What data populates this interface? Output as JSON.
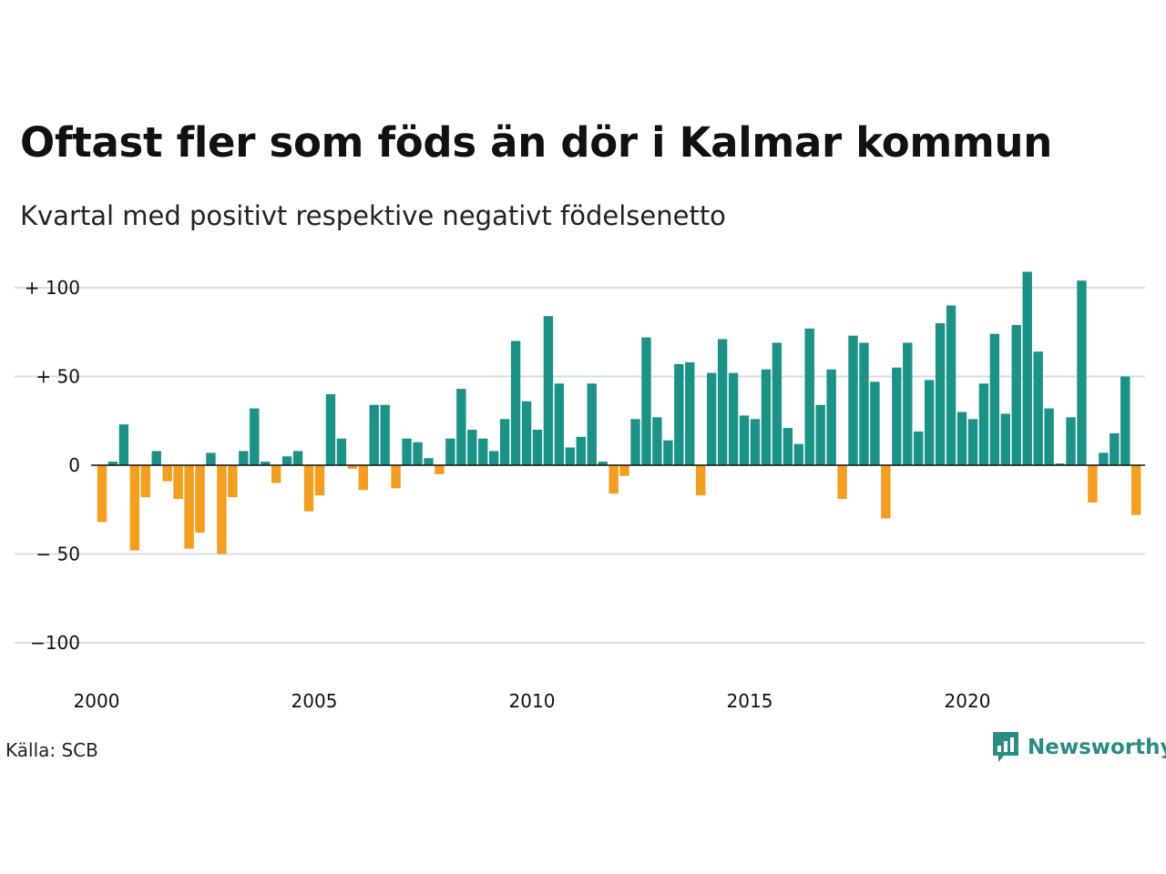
{
  "chart_data": {
    "type": "bar",
    "title": "Oftast fler som föds än dör i Kalmar kommun",
    "subtitle": "Kvartal med positivt respektive negativt födelsenetto",
    "source": "Källa: SCB",
    "brand": "Newsworthy",
    "ylim": [
      -110,
      110
    ],
    "y_ticks": [
      {
        "value": 100,
        "label": "+ 100"
      },
      {
        "value": 50,
        "label": "+  50"
      },
      {
        "value": 0,
        "label": "0"
      },
      {
        "value": -50,
        "label": "− 50"
      },
      {
        "value": -100,
        "label": "−100"
      }
    ],
    "x_start": 2000,
    "x_ticks": [
      {
        "value": 2000,
        "label": "2000"
      },
      {
        "value": 2005,
        "label": "2005"
      },
      {
        "value": 2010,
        "label": "2010"
      },
      {
        "value": 2015,
        "label": "2015"
      },
      {
        "value": 2020,
        "label": "2020"
      }
    ],
    "colors": {
      "positive": "#1a9386",
      "negative": "#f59d1c",
      "grid": "#dddddd",
      "zero": "#111111"
    },
    "values": [
      -32,
      2,
      23,
      -48,
      -18,
      8,
      -9,
      -19,
      -47,
      -38,
      7,
      -50,
      -18,
      8,
      32,
      2,
      -10,
      5,
      8,
      -26,
      -17,
      40,
      15,
      -2,
      -14,
      34,
      34,
      -13,
      15,
      13,
      4,
      -5,
      15,
      43,
      20,
      15,
      8,
      26,
      70,
      36,
      20,
      84,
      46,
      10,
      16,
      46,
      2,
      -16,
      -6,
      26,
      72,
      27,
      14,
      57,
      58,
      -17,
      52,
      71,
      52,
      28,
      26,
      54,
      69,
      21,
      12,
      77,
      34,
      54,
      -19,
      73,
      69,
      47,
      -30,
      55,
      69,
      19,
      48,
      80,
      90,
      30,
      26,
      46,
      74,
      29,
      79,
      109,
      64,
      32,
      1,
      27,
      104,
      -21,
      7,
      18,
      50,
      -28
    ]
  }
}
